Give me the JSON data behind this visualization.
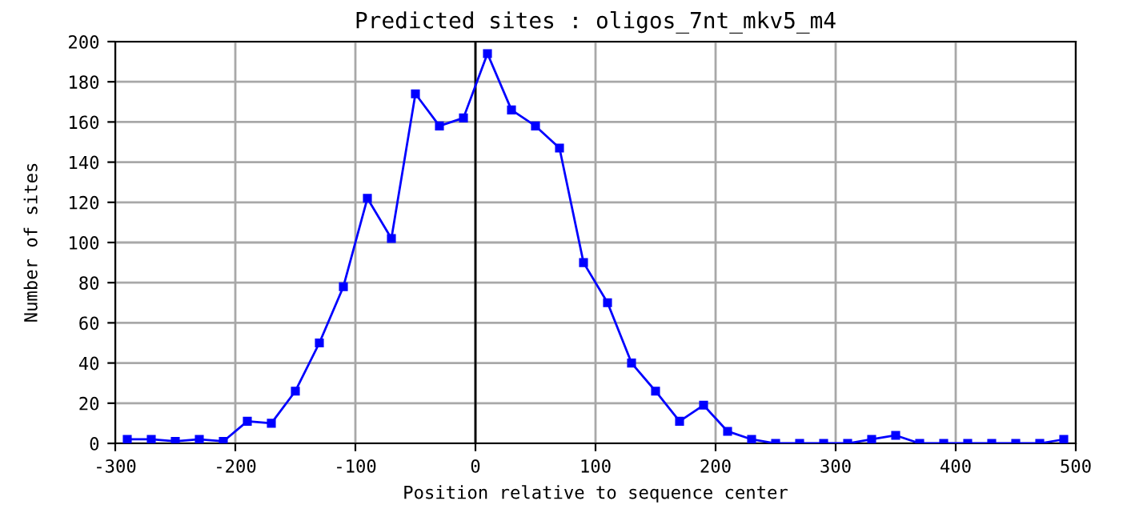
{
  "chart_data": {
    "type": "line",
    "title": "Predicted sites : oligos_7nt_mkv5_m4",
    "xlabel": "Position relative to sequence center",
    "ylabel": "Number of sites",
    "x": [
      -290,
      -270,
      -250,
      -230,
      -210,
      -190,
      -170,
      -150,
      -130,
      -110,
      -90,
      -70,
      -50,
      -30,
      -10,
      10,
      30,
      50,
      70,
      90,
      110,
      130,
      150,
      170,
      190,
      210,
      230,
      250,
      270,
      290,
      310,
      330,
      350,
      370,
      390,
      410,
      430,
      450,
      470,
      490
    ],
    "series": [
      {
        "color": "#0000ff",
        "values": [
          2,
          2,
          1,
          2,
          1,
          11,
          10,
          26,
          50,
          78,
          122,
          102,
          174,
          158,
          162,
          194,
          166,
          158,
          147,
          90,
          70,
          40,
          26,
          11,
          19,
          6,
          2,
          0,
          0,
          0,
          0,
          2,
          4,
          0,
          0,
          0,
          0,
          0,
          0,
          2
        ]
      }
    ],
    "xlim": [
      -300,
      500
    ],
    "xticks": [
      -300,
      -200,
      -100,
      0,
      100,
      200,
      300,
      400,
      500
    ],
    "ylim": [
      0,
      200
    ],
    "yticks": [
      0,
      20,
      40,
      60,
      80,
      100,
      120,
      140,
      160,
      180,
      200
    ],
    "grid": true,
    "marker": "square",
    "line_style": "solid",
    "ref_lines": [
      {
        "axis": "x",
        "value": 0,
        "color": "#000000"
      }
    ]
  }
}
